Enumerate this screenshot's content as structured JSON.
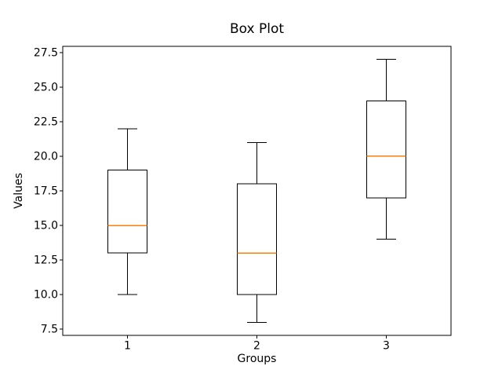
{
  "chart_data": {
    "type": "box",
    "title": "Box Plot",
    "xlabel": "Groups",
    "ylabel": "Values",
    "xlim": [
      0.5,
      3.5
    ],
    "ylim": [
      7.05,
      27.95
    ],
    "grid": false,
    "yticks": [
      {
        "value": 7.5,
        "label": "7.5"
      },
      {
        "value": 10.0,
        "label": "10.0"
      },
      {
        "value": 12.5,
        "label": "12.5"
      },
      {
        "value": 15.0,
        "label": "15.0"
      },
      {
        "value": 17.5,
        "label": "17.5"
      },
      {
        "value": 20.0,
        "label": "20.0"
      },
      {
        "value": 22.5,
        "label": "22.5"
      },
      {
        "value": 25.0,
        "label": "25.0"
      },
      {
        "value": 27.5,
        "label": "27.5"
      }
    ],
    "groups": [
      {
        "label": "1",
        "position": 1,
        "whisker_low": 10,
        "q1": 13,
        "median": 15,
        "q3": 19,
        "whisker_high": 22
      },
      {
        "label": "2",
        "position": 2,
        "whisker_low": 8,
        "q1": 10,
        "median": 13,
        "q3": 18,
        "whisker_high": 21
      },
      {
        "label": "3",
        "position": 3,
        "whisker_low": 14,
        "q1": 17,
        "median": 20,
        "q3": 24,
        "whisker_high": 27
      }
    ],
    "colors": {
      "median": "#ff7f0e",
      "line": "#000000",
      "background": "#ffffff"
    }
  }
}
